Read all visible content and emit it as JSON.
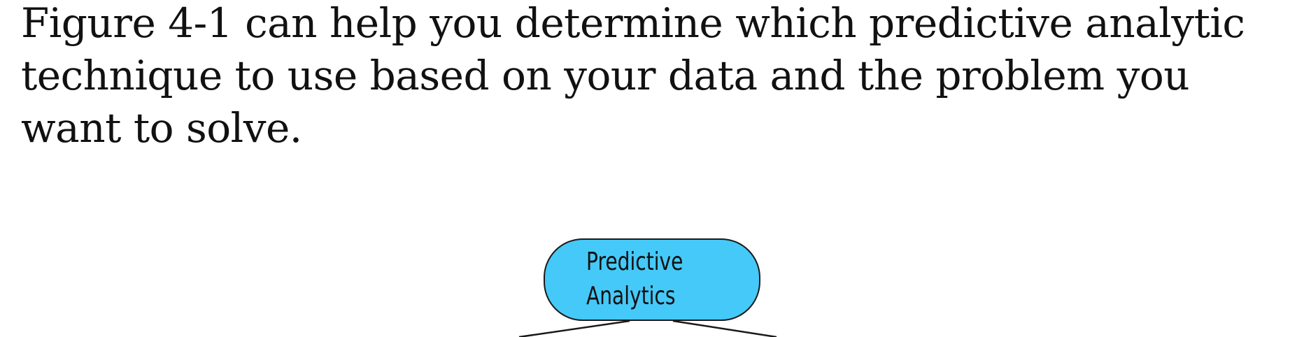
{
  "paragraph": {
    "lines": [
      "Figure 4-1 can help you determine which predictive analytic",
      "technique to use based on your data and the problem you",
      "want to solve."
    ]
  },
  "figure": {
    "root": {
      "label_lines": [
        "Predictive",
        "Analytics"
      ],
      "fill_color": "#45c9f8"
    }
  }
}
